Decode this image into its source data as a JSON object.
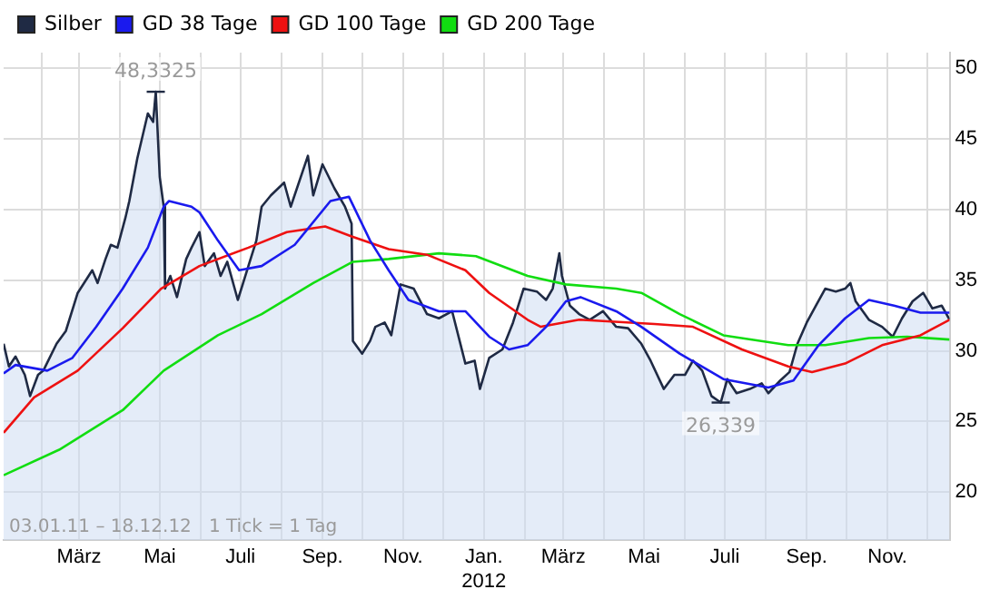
{
  "chart_data": {
    "type": "line",
    "xlim": [
      "2011-01-03",
      "2012-12-18"
    ],
    "ylim": [
      16.6,
      51.1
    ],
    "xticks": [
      {
        "value": "2011-02-01",
        "label": null
      },
      {
        "value": "2011-03-01",
        "label": "März"
      },
      {
        "value": "2011-04-01",
        "label": null
      },
      {
        "value": "2011-05-01",
        "label": "Mai"
      },
      {
        "value": "2011-06-01",
        "label": null
      },
      {
        "value": "2011-07-01",
        "label": "Juli"
      },
      {
        "value": "2011-08-01",
        "label": null
      },
      {
        "value": "2011-09-01",
        "label": "Sep."
      },
      {
        "value": "2011-10-01",
        "label": null
      },
      {
        "value": "2011-11-01",
        "label": "Nov."
      },
      {
        "value": "2011-12-01",
        "label": null
      },
      {
        "value": "2012-01-01",
        "label": "Jan.\n2012"
      },
      {
        "value": "2012-02-01",
        "label": null
      },
      {
        "value": "2012-03-01",
        "label": "März"
      },
      {
        "value": "2012-04-01",
        "label": null
      },
      {
        "value": "2012-05-01",
        "label": "Mai"
      },
      {
        "value": "2012-06-01",
        "label": null
      },
      {
        "value": "2012-07-01",
        "label": "Juli"
      },
      {
        "value": "2012-08-01",
        "label": null
      },
      {
        "value": "2012-09-01",
        "label": "Sep."
      },
      {
        "value": "2012-10-01",
        "label": null
      },
      {
        "value": "2012-11-01",
        "label": "Nov."
      },
      {
        "value": "2012-12-01",
        "label": null
      }
    ],
    "yticks": [
      20,
      25,
      30,
      35,
      40,
      45,
      50
    ],
    "grid": true,
    "legend": "top left",
    "marker": "none",
    "line_style": "solid",
    "annotations": [
      {
        "text": "48,3325",
        "x": "2011-04-28",
        "y": 48.3325
      },
      {
        "text": "26,339",
        "x": "2012-06-28",
        "y": 26.339
      },
      "03.01.11 – 18.12.12   1 Tick = 1 Tag"
    ],
    "series": [
      {
        "name": "Silber",
        "type": "area",
        "color": "#1f2a44",
        "x": [
          "2011-01-03",
          "2011-01-07",
          "2011-01-12",
          "2011-01-19",
          "2011-01-23",
          "2011-01-29",
          "2011-02-02",
          "2011-02-12",
          "2011-02-19",
          "2011-02-28",
          "2011-03-11",
          "2011-03-15",
          "2011-03-21",
          "2011-03-25",
          "2011-03-30",
          "2011-04-05",
          "2011-04-08",
          "2011-04-14",
          "2011-04-22",
          "2011-04-26",
          "2011-04-28",
          "2011-05-01",
          "2011-05-04",
          "2011-05-05",
          "2011-05-09",
          "2011-05-14",
          "2011-05-21",
          "2011-05-25",
          "2011-05-31",
          "2011-06-04",
          "2011-06-11",
          "2011-06-16",
          "2011-06-21",
          "2011-06-29",
          "2011-07-03",
          "2011-07-07",
          "2011-07-13",
          "2011-07-17",
          "2011-07-24",
          "2011-08-03",
          "2011-08-08",
          "2011-08-21",
          "2011-08-25",
          "2011-09-01",
          "2011-09-10",
          "2011-09-18",
          "2011-09-23",
          "2011-09-24",
          "2011-10-01",
          "2011-10-07",
          "2011-10-11",
          "2011-10-18",
          "2011-10-23",
          "2011-10-30",
          "2011-11-09",
          "2011-11-19",
          "2011-11-28",
          "2011-12-08",
          "2011-12-18",
          "2011-12-25",
          "2011-12-29",
          "2012-01-05",
          "2012-01-15",
          "2012-01-23",
          "2012-01-31",
          "2012-02-10",
          "2012-02-17",
          "2012-02-22",
          "2012-02-27",
          "2012-02-29",
          "2012-03-06",
          "2012-03-13",
          "2012-03-21",
          "2012-03-31",
          "2012-04-10",
          "2012-04-19",
          "2012-04-29",
          "2012-05-06",
          "2012-05-16",
          "2012-05-24",
          "2012-06-01",
          "2012-06-07",
          "2012-06-14",
          "2012-06-21",
          "2012-06-28",
          "2012-07-03",
          "2012-07-10",
          "2012-07-20",
          "2012-07-29",
          "2012-08-03",
          "2012-08-12",
          "2012-08-19",
          "2012-08-25",
          "2012-09-01",
          "2012-09-08",
          "2012-09-15",
          "2012-09-23",
          "2012-09-30",
          "2012-10-04",
          "2012-10-08",
          "2012-10-18",
          "2012-10-28",
          "2012-11-05",
          "2012-11-12",
          "2012-11-20",
          "2012-11-28",
          "2012-12-05",
          "2012-12-12",
          "2012-12-18"
        ],
        "values": [
          30.5,
          28.9,
          29.6,
          28.3,
          26.8,
          28.3,
          28.6,
          30.5,
          31.4,
          34.1,
          35.7,
          34.8,
          36.5,
          37.5,
          37.3,
          39.4,
          40.6,
          43.6,
          46.8,
          46.2,
          48.3325,
          42.3,
          40.2,
          34.4,
          35.3,
          33.8,
          36.5,
          37.3,
          38.4,
          36.0,
          36.9,
          35.3,
          36.3,
          33.6,
          34.8,
          36.0,
          37.8,
          40.2,
          41.0,
          41.9,
          40.2,
          43.8,
          41.0,
          43.2,
          41.5,
          40.2,
          39.0,
          30.7,
          29.8,
          30.7,
          31.7,
          32.0,
          31.1,
          34.7,
          34.4,
          32.6,
          32.3,
          32.8,
          29.1,
          29.3,
          27.3,
          29.5,
          30.1,
          32.0,
          34.4,
          34.2,
          33.6,
          34.4,
          36.9,
          35.3,
          33.2,
          32.6,
          32.2,
          32.8,
          31.7,
          31.6,
          30.5,
          29.3,
          27.3,
          28.3,
          28.3,
          29.3,
          28.6,
          26.8,
          26.339,
          28.0,
          27.0,
          27.3,
          27.7,
          27.0,
          27.9,
          28.5,
          30.5,
          32.0,
          33.2,
          34.4,
          34.2,
          34.4,
          34.8,
          33.5,
          32.2,
          31.7,
          31.0,
          32.3,
          33.5,
          34.1,
          33.0,
          33.2,
          32.2
        ]
      },
      {
        "name": "GD 38 Tage",
        "type": "line",
        "color": "#1a1aee",
        "x": [
          "2011-01-03",
          "2011-01-12",
          "2011-02-05",
          "2011-02-24",
          "2011-03-14",
          "2011-04-03",
          "2011-04-22",
          "2011-05-04",
          "2011-05-08",
          "2011-05-25",
          "2011-05-31",
          "2011-06-14",
          "2011-06-30",
          "2011-07-17",
          "2011-08-11",
          "2011-09-07",
          "2011-09-21",
          "2011-10-07",
          "2011-10-21",
          "2011-11-05",
          "2011-11-28",
          "2011-12-18",
          "2012-01-05",
          "2012-01-20",
          "2012-02-03",
          "2012-02-17",
          "2012-03-03",
          "2012-03-14",
          "2012-04-10",
          "2012-04-29",
          "2012-05-28",
          "2012-06-30",
          "2012-08-03",
          "2012-08-22",
          "2012-09-10",
          "2012-09-30",
          "2012-10-18",
          "2012-11-06",
          "2012-11-26",
          "2012-12-18"
        ],
        "values": [
          28.4,
          29.0,
          28.6,
          29.5,
          31.7,
          34.4,
          37.3,
          40.2,
          40.6,
          40.2,
          39.8,
          37.8,
          35.7,
          36.0,
          37.5,
          40.6,
          40.9,
          37.8,
          35.7,
          33.6,
          32.8,
          32.8,
          31.0,
          30.1,
          30.4,
          31.7,
          33.5,
          33.8,
          32.8,
          31.7,
          29.8,
          28.0,
          27.4,
          27.9,
          30.4,
          32.3,
          33.6,
          33.2,
          32.7,
          32.7
        ]
      },
      {
        "name": "GD 100 Tage",
        "type": "line",
        "color": "#ee1111",
        "x": [
          "2011-01-03",
          "2011-01-26",
          "2011-02-28",
          "2011-04-03",
          "2011-05-02",
          "2011-05-31",
          "2011-07-07",
          "2011-08-05",
          "2011-09-03",
          "2011-09-23",
          "2011-10-21",
          "2011-11-19",
          "2011-12-18",
          "2012-01-05",
          "2012-02-03",
          "2012-02-13",
          "2012-03-13",
          "2012-05-09",
          "2012-06-07",
          "2012-07-14",
          "2012-08-18",
          "2012-09-05",
          "2012-09-30",
          "2012-10-28",
          "2012-11-26",
          "2012-12-18"
        ],
        "values": [
          24.2,
          26.7,
          28.6,
          31.6,
          34.4,
          36.0,
          37.3,
          38.4,
          38.8,
          38.1,
          37.2,
          36.8,
          35.7,
          34.1,
          32.2,
          31.7,
          32.2,
          31.9,
          31.7,
          30.1,
          28.9,
          28.5,
          29.1,
          30.4,
          31.1,
          32.2
        ]
      },
      {
        "name": "GD 200 Tage",
        "type": "line",
        "color": "#11dd11",
        "x": [
          "2011-01-03",
          "2011-02-14",
          "2011-04-03",
          "2011-05-04",
          "2011-06-14",
          "2011-07-17",
          "2011-08-25",
          "2011-09-24",
          "2011-10-21",
          "2011-11-28",
          "2011-12-26",
          "2012-02-03",
          "2012-03-03",
          "2012-04-10",
          "2012-04-29",
          "2012-05-28",
          "2012-06-30",
          "2012-08-18",
          "2012-09-15",
          "2012-10-18",
          "2012-11-16",
          "2012-12-18"
        ],
        "values": [
          21.2,
          23.0,
          25.8,
          28.6,
          31.1,
          32.6,
          34.8,
          36.3,
          36.5,
          36.9,
          36.7,
          35.3,
          34.7,
          34.4,
          34.1,
          32.6,
          31.1,
          30.4,
          30.4,
          30.9,
          31.0,
          30.8
        ]
      }
    ]
  }
}
